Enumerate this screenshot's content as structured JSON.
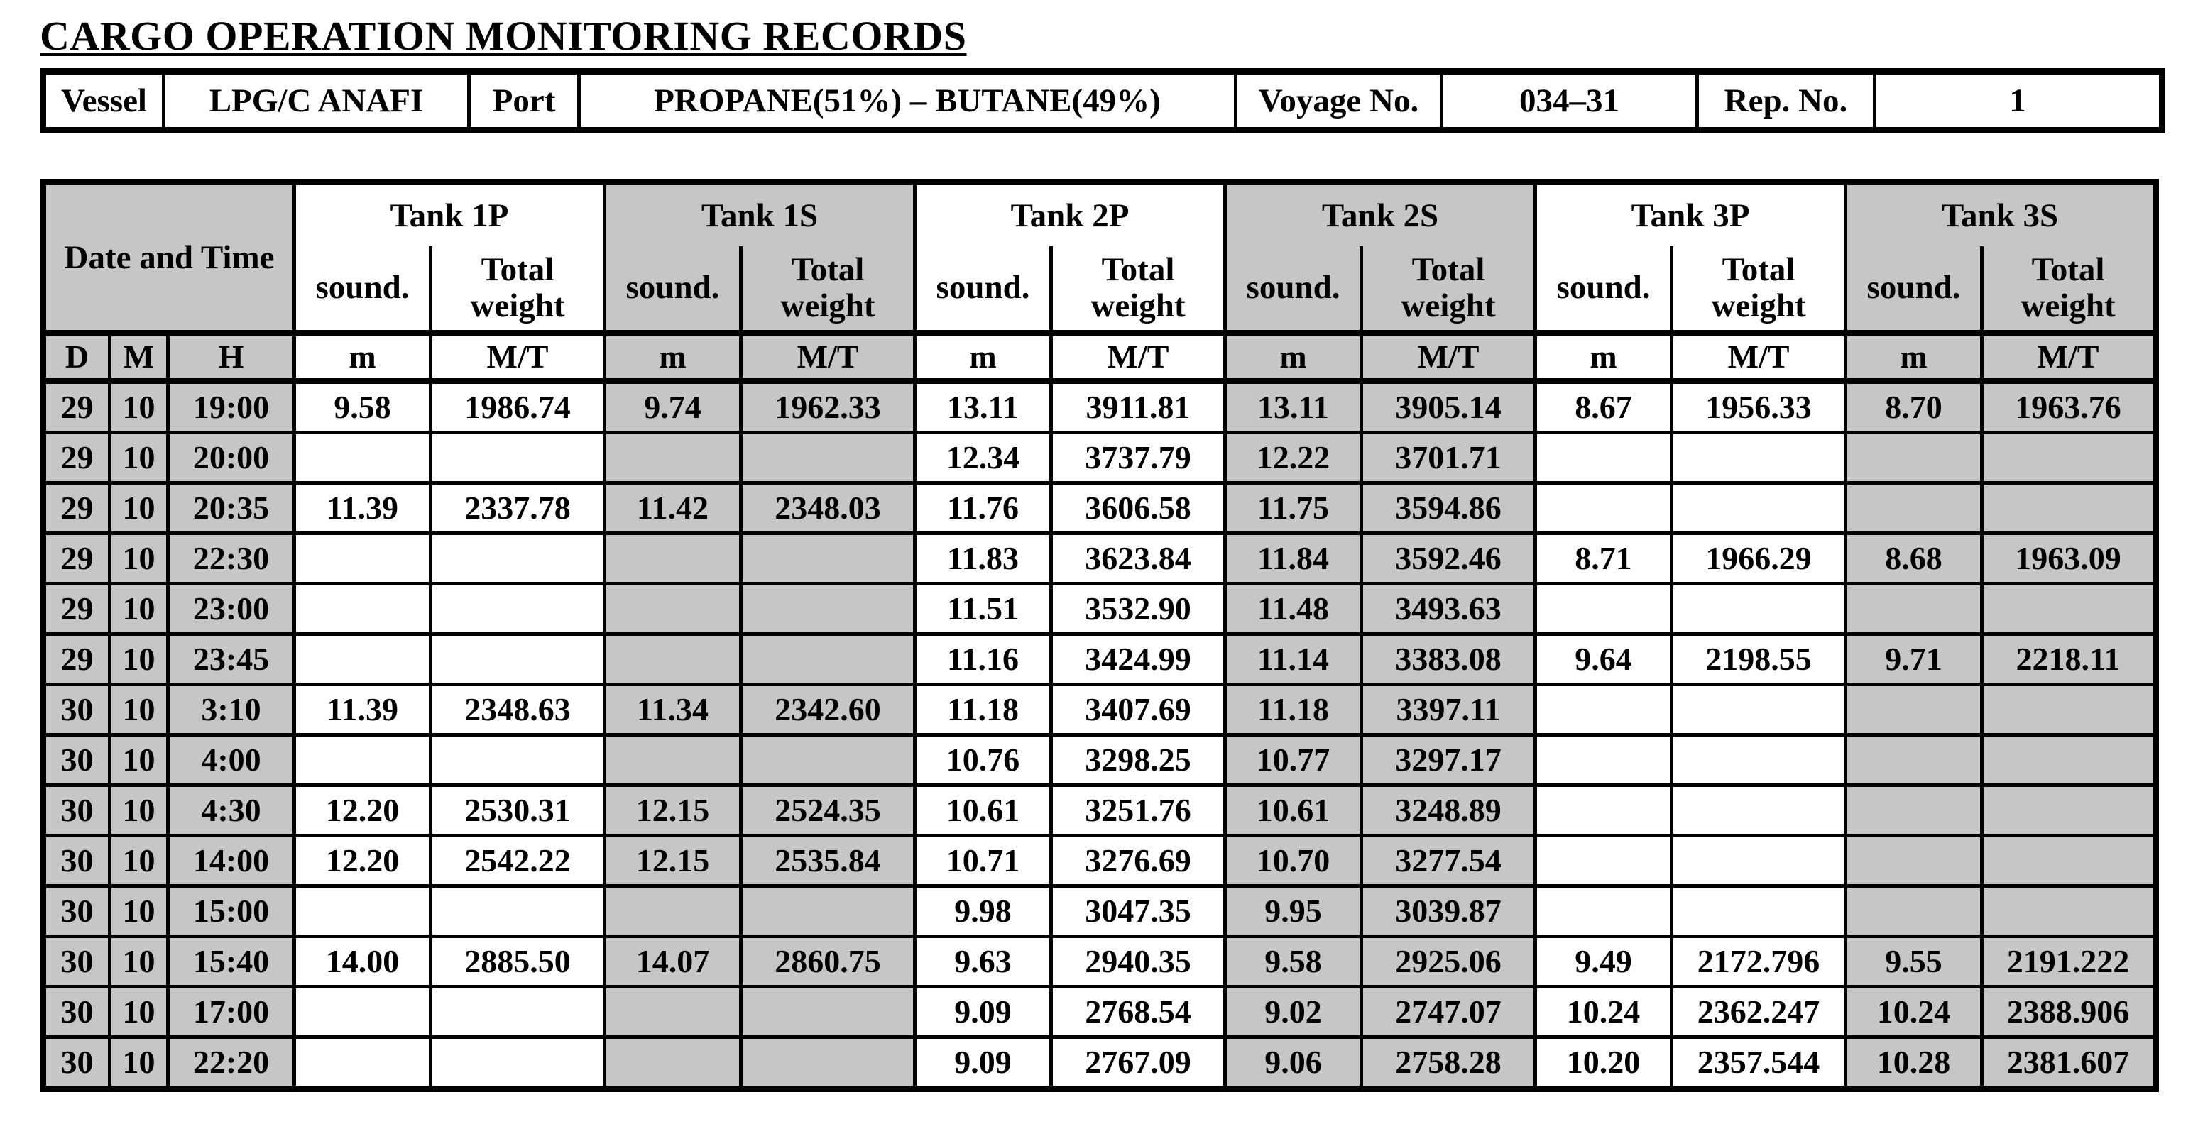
{
  "title": "CARGO OPERATION MONITORING RECORDS",
  "vessel_bar": {
    "vessel_label": "Vessel",
    "vessel_value": "LPG/C ANAFI",
    "port_label": "Port",
    "port_value": "PROPANE(51%) – BUTANE(49%)",
    "voyage_label": "Voyage No.",
    "voyage_value": "034–31",
    "rep_label": "Rep. No.",
    "rep_value": "1"
  },
  "table": {
    "date_time_header": "Date and Time",
    "date_cols": [
      "D",
      "M",
      "H"
    ],
    "sub_headers": {
      "sound": "sound.",
      "weight": "Total weight"
    },
    "units": {
      "sound": "m",
      "weight": "M/T"
    },
    "tanks": [
      {
        "name": "Tank 1P",
        "shaded": false
      },
      {
        "name": "Tank 1S",
        "shaded": true
      },
      {
        "name": "Tank 2P",
        "shaded": false
      },
      {
        "name": "Tank 2S",
        "shaded": true
      },
      {
        "name": "Tank 3P",
        "shaded": false
      },
      {
        "name": "Tank 3S",
        "shaded": true
      }
    ],
    "rows": [
      {
        "d": "29",
        "m": "10",
        "h": "19:00",
        "values": [
          "9.58",
          "1986.74",
          "9.74",
          "1962.33",
          "13.11",
          "3911.81",
          "13.11",
          "3905.14",
          "8.67",
          "1956.33",
          "8.70",
          "1963.76"
        ]
      },
      {
        "d": "29",
        "m": "10",
        "h": "20:00",
        "values": [
          "",
          "",
          "",
          "",
          "12.34",
          "3737.79",
          "12.22",
          "3701.71",
          "",
          "",
          "",
          ""
        ]
      },
      {
        "d": "29",
        "m": "10",
        "h": "20:35",
        "values": [
          "11.39",
          "2337.78",
          "11.42",
          "2348.03",
          "11.76",
          "3606.58",
          "11.75",
          "3594.86",
          "",
          "",
          "",
          ""
        ]
      },
      {
        "d": "29",
        "m": "10",
        "h": "22:30",
        "values": [
          "",
          "",
          "",
          "",
          "11.83",
          "3623.84",
          "11.84",
          "3592.46",
          "8.71",
          "1966.29",
          "8.68",
          "1963.09"
        ]
      },
      {
        "d": "29",
        "m": "10",
        "h": "23:00",
        "values": [
          "",
          "",
          "",
          "",
          "11.51",
          "3532.90",
          "11.48",
          "3493.63",
          "",
          "",
          "",
          ""
        ]
      },
      {
        "d": "29",
        "m": "10",
        "h": "23:45",
        "values": [
          "",
          "",
          "",
          "",
          "11.16",
          "3424.99",
          "11.14",
          "3383.08",
          "9.64",
          "2198.55",
          "9.71",
          "2218.11"
        ]
      },
      {
        "d": "30",
        "m": "10",
        "h": "3:10",
        "values": [
          "11.39",
          "2348.63",
          "11.34",
          "2342.60",
          "11.18",
          "3407.69",
          "11.18",
          "3397.11",
          "",
          "",
          "",
          ""
        ]
      },
      {
        "d": "30",
        "m": "10",
        "h": "4:00",
        "values": [
          "",
          "",
          "",
          "",
          "10.76",
          "3298.25",
          "10.77",
          "3297.17",
          "",
          "",
          "",
          ""
        ]
      },
      {
        "d": "30",
        "m": "10",
        "h": "4:30",
        "values": [
          "12.20",
          "2530.31",
          "12.15",
          "2524.35",
          "10.61",
          "3251.76",
          "10.61",
          "3248.89",
          "",
          "",
          "",
          ""
        ]
      },
      {
        "d": "30",
        "m": "10",
        "h": "14:00",
        "values": [
          "12.20",
          "2542.22",
          "12.15",
          "2535.84",
          "10.71",
          "3276.69",
          "10.70",
          "3277.54",
          "",
          "",
          "",
          ""
        ]
      },
      {
        "d": "30",
        "m": "10",
        "h": "15:00",
        "values": [
          "",
          "",
          "",
          "",
          "9.98",
          "3047.35",
          "9.95",
          "3039.87",
          "",
          "",
          "",
          ""
        ]
      },
      {
        "d": "30",
        "m": "10",
        "h": "15:40",
        "values": [
          "14.00",
          "2885.50",
          "14.07",
          "2860.75",
          "9.63",
          "2940.35",
          "9.58",
          "2925.06",
          "9.49",
          "2172.796",
          "9.55",
          "2191.222"
        ]
      },
      {
        "d": "30",
        "m": "10",
        "h": "17:00",
        "values": [
          "",
          "",
          "",
          "",
          "9.09",
          "2768.54",
          "9.02",
          "2747.07",
          "10.24",
          "2362.247",
          "10.24",
          "2388.906"
        ]
      },
      {
        "d": "30",
        "m": "10",
        "h": "22:20",
        "values": [
          "",
          "",
          "",
          "",
          "9.09",
          "2767.09",
          "9.06",
          "2758.28",
          "10.20",
          "2357.544",
          "10.28",
          "2381.607"
        ]
      }
    ]
  },
  "colors": {
    "shaded": "#c6c6c6",
    "border": "#000000",
    "background": "#ffffff"
  }
}
